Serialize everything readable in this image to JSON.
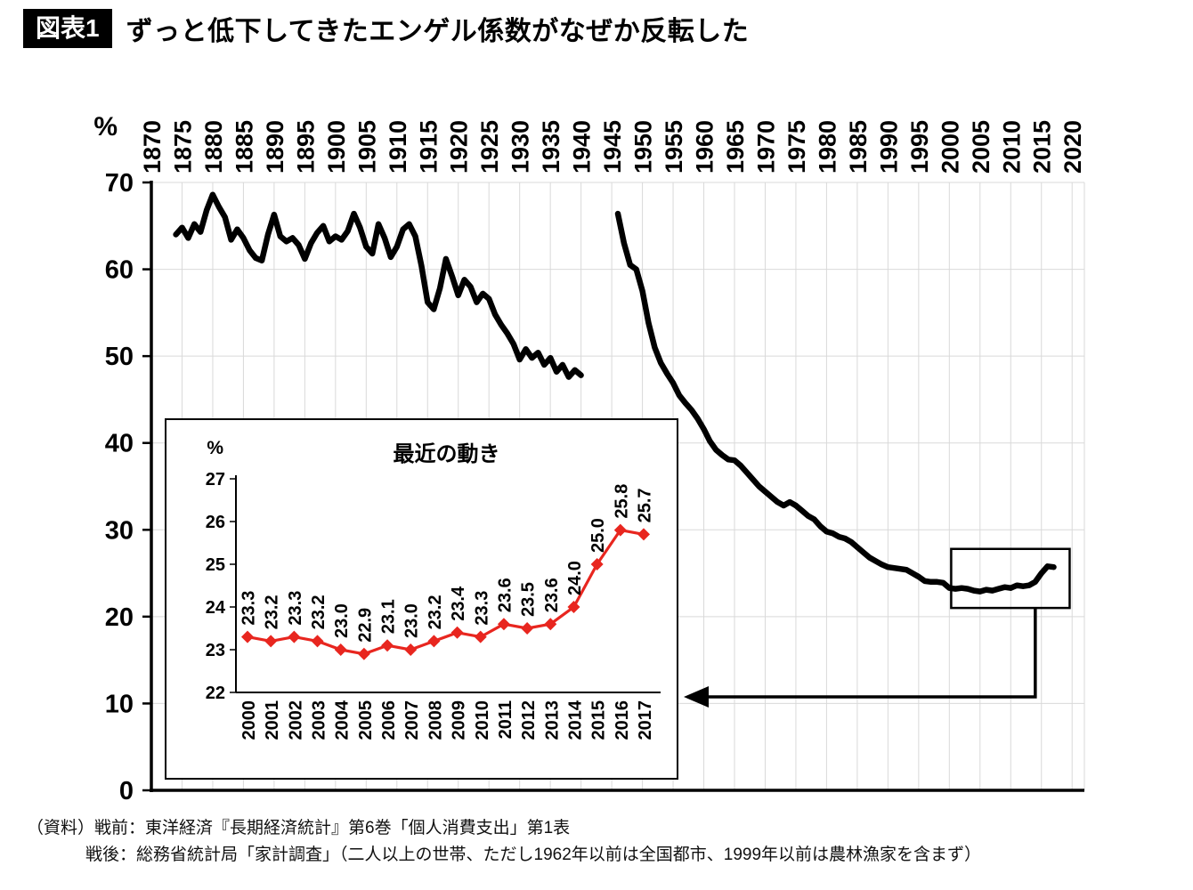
{
  "header": {
    "tag": "図表1",
    "title": "ずっと低下してきたエンゲル係数がなぜか反転した"
  },
  "source": {
    "line1": "（資料）戦前：東洋経済『長期経済統計』第6巻「個人消費支出」第1表",
    "line2": "戦後：総務省統計局「家計調査」（二人以上の世帯、ただし1962年以前は全国都市、1999年以前は農林漁家を含まず）"
  },
  "chart_data": [
    {
      "type": "line",
      "title": "",
      "ylabel": "%",
      "ylim": [
        0,
        70
      ],
      "yticks": [
        0,
        10,
        20,
        30,
        40,
        50,
        60,
        70
      ],
      "xlim": [
        1870,
        2022
      ],
      "xticks": [
        1870,
        1875,
        1880,
        1885,
        1890,
        1895,
        1900,
        1905,
        1910,
        1915,
        1920,
        1925,
        1930,
        1935,
        1940,
        1945,
        1950,
        1955,
        1960,
        1965,
        1970,
        1975,
        1980,
        1985,
        1990,
        1995,
        2000,
        2005,
        2010,
        2015,
        2020
      ],
      "grid": true,
      "grid_color": "#d9d9d9",
      "line_color": "#000000",
      "series": [
        {
          "name": "prewar",
          "points": [
            [
              1874,
              64.0
            ],
            [
              1875,
              64.8
            ],
            [
              1876,
              63.6
            ],
            [
              1877,
              65.2
            ],
            [
              1878,
              64.3
            ],
            [
              1879,
              66.8
            ],
            [
              1880,
              68.6
            ],
            [
              1881,
              67.2
            ],
            [
              1882,
              66.0
            ],
            [
              1883,
              63.4
            ],
            [
              1884,
              64.6
            ],
            [
              1885,
              63.6
            ],
            [
              1886,
              62.2
            ],
            [
              1887,
              61.3
            ],
            [
              1888,
              61.0
            ],
            [
              1889,
              64.0
            ],
            [
              1890,
              66.3
            ],
            [
              1891,
              63.8
            ],
            [
              1892,
              63.2
            ],
            [
              1893,
              63.6
            ],
            [
              1894,
              62.8
            ],
            [
              1895,
              61.2
            ],
            [
              1896,
              63.0
            ],
            [
              1897,
              64.2
            ],
            [
              1898,
              65.0
            ],
            [
              1899,
              63.2
            ],
            [
              1900,
              63.8
            ],
            [
              1901,
              63.4
            ],
            [
              1902,
              64.4
            ],
            [
              1903,
              66.4
            ],
            [
              1904,
              64.8
            ],
            [
              1905,
              62.6
            ],
            [
              1906,
              61.8
            ],
            [
              1907,
              65.2
            ],
            [
              1908,
              63.6
            ],
            [
              1909,
              61.4
            ],
            [
              1910,
              62.6
            ],
            [
              1911,
              64.6
            ],
            [
              1912,
              65.2
            ],
            [
              1913,
              63.8
            ],
            [
              1914,
              60.4
            ],
            [
              1915,
              56.2
            ],
            [
              1916,
              55.4
            ],
            [
              1917,
              57.8
            ],
            [
              1918,
              61.2
            ],
            [
              1919,
              59.2
            ],
            [
              1920,
              57.0
            ],
            [
              1921,
              58.8
            ],
            [
              1922,
              58.0
            ],
            [
              1923,
              56.2
            ],
            [
              1924,
              57.2
            ],
            [
              1925,
              56.6
            ],
            [
              1926,
              54.8
            ],
            [
              1927,
              53.6
            ],
            [
              1928,
              52.6
            ],
            [
              1929,
              51.4
            ],
            [
              1930,
              49.6
            ],
            [
              1931,
              50.8
            ],
            [
              1932,
              49.8
            ],
            [
              1933,
              50.4
            ],
            [
              1934,
              49.0
            ],
            [
              1935,
              49.8
            ],
            [
              1936,
              48.2
            ],
            [
              1937,
              49.0
            ],
            [
              1938,
              47.6
            ],
            [
              1939,
              48.4
            ],
            [
              1940,
              47.8
            ]
          ]
        },
        {
          "name": "postwar",
          "points": [
            [
              1946,
              66.4
            ],
            [
              1947,
              63.0
            ],
            [
              1948,
              60.5
            ],
            [
              1949,
              60.0
            ],
            [
              1950,
              57.5
            ],
            [
              1951,
              53.8
            ],
            [
              1952,
              51.0
            ],
            [
              1953,
              49.2
            ],
            [
              1954,
              48.0
            ],
            [
              1955,
              46.9
            ],
            [
              1956,
              45.5
            ],
            [
              1957,
              44.6
            ],
            [
              1958,
              43.8
            ],
            [
              1959,
              42.8
            ],
            [
              1960,
              41.6
            ],
            [
              1961,
              40.2
            ],
            [
              1962,
              39.2
            ],
            [
              1963,
              38.6
            ],
            [
              1964,
              38.1
            ],
            [
              1965,
              38.0
            ],
            [
              1966,
              37.4
            ],
            [
              1967,
              36.6
            ],
            [
              1968,
              35.8
            ],
            [
              1969,
              35.0
            ],
            [
              1970,
              34.4
            ],
            [
              1971,
              33.8
            ],
            [
              1972,
              33.2
            ],
            [
              1973,
              32.8
            ],
            [
              1974,
              33.2
            ],
            [
              1975,
              32.8
            ],
            [
              1976,
              32.2
            ],
            [
              1977,
              31.6
            ],
            [
              1978,
              31.2
            ],
            [
              1979,
              30.4
            ],
            [
              1980,
              29.8
            ],
            [
              1981,
              29.6
            ],
            [
              1982,
              29.2
            ],
            [
              1983,
              29.0
            ],
            [
              1984,
              28.6
            ],
            [
              1985,
              28.0
            ],
            [
              1986,
              27.4
            ],
            [
              1987,
              26.8
            ],
            [
              1988,
              26.4
            ],
            [
              1989,
              26.0
            ],
            [
              1990,
              25.7
            ],
            [
              1991,
              25.6
            ],
            [
              1992,
              25.5
            ],
            [
              1993,
              25.4
            ],
            [
              1994,
              25.0
            ],
            [
              1995,
              24.6
            ],
            [
              1996,
              24.1
            ],
            [
              1997,
              24.0
            ],
            [
              1998,
              24.0
            ],
            [
              1999,
              23.9
            ],
            [
              2000,
              23.3
            ],
            [
              2001,
              23.2
            ],
            [
              2002,
              23.3
            ],
            [
              2003,
              23.2
            ],
            [
              2004,
              23.0
            ],
            [
              2005,
              22.9
            ],
            [
              2006,
              23.1
            ],
            [
              2007,
              23.0
            ],
            [
              2008,
              23.2
            ],
            [
              2009,
              23.4
            ],
            [
              2010,
              23.3
            ],
            [
              2011,
              23.6
            ],
            [
              2012,
              23.5
            ],
            [
              2013,
              23.6
            ],
            [
              2014,
              24.0
            ],
            [
              2015,
              25.0
            ],
            [
              2016,
              25.8
            ],
            [
              2017,
              25.7
            ]
          ]
        }
      ],
      "highlight_box": {
        "x0": 2000.3,
        "x1": 2019.6,
        "y0": 21.0,
        "y1": 27.8
      },
      "arrow_to_inset": true
    },
    {
      "type": "line",
      "title": "最近の動き",
      "ylabel": "%",
      "ylim": [
        22,
        27
      ],
      "yticks": [
        22,
        23,
        24,
        25,
        26,
        27
      ],
      "categories": [
        2000,
        2001,
        2002,
        2003,
        2004,
        2005,
        2006,
        2007,
        2008,
        2009,
        2010,
        2011,
        2012,
        2013,
        2014,
        2015,
        2016,
        2017
      ],
      "values": [
        23.3,
        23.2,
        23.3,
        23.2,
        23.0,
        22.9,
        23.1,
        23.0,
        23.2,
        23.4,
        23.3,
        23.6,
        23.5,
        23.6,
        24.0,
        25.0,
        25.8,
        25.7
      ],
      "color": "#e8261f",
      "marker": "diamond",
      "data_labels_shown": true
    }
  ]
}
